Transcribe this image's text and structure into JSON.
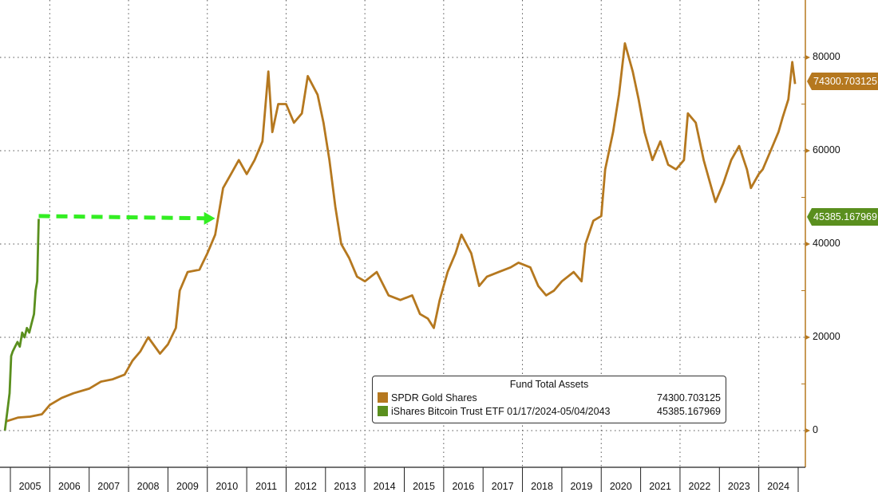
{
  "chart_data": {
    "type": "line",
    "title": "",
    "xlabel": "",
    "ylabel": "",
    "ylim": [
      -8000,
      92000
    ],
    "xlim": [
      2004.98,
      2025.3
    ],
    "grid": true,
    "legend_placement": "bottom-right",
    "y_ticks": [
      "0",
      "20000",
      "40000",
      "60000",
      "80000"
    ],
    "y_tick_values": [
      0,
      20000,
      40000,
      60000,
      80000
    ],
    "x_tick_labels": [
      "2005",
      "2006",
      "2007",
      "2008",
      "2009",
      "2010",
      "2011",
      "2012",
      "2013",
      "2014",
      "2015",
      "2016",
      "2017",
      "2018",
      "2019",
      "2020",
      "2021",
      "2022",
      "2023",
      "2024"
    ],
    "legend_title": "Fund Total Assets",
    "series": [
      {
        "name": "SPDR Gold Shares",
        "last_value": "74300.703125",
        "color": "#b5781f",
        "x": [
          2004.9,
          2005.2,
          2005.5,
          2005.8,
          2006.0,
          2006.3,
          2006.6,
          2007.0,
          2007.3,
          2007.6,
          2007.9,
          2008.1,
          2008.3,
          2008.5,
          2008.8,
          2009.0,
          2009.2,
          2009.3,
          2009.5,
          2009.8,
          2010.0,
          2010.2,
          2010.4,
          2010.6,
          2010.8,
          2011.0,
          2011.2,
          2011.4,
          2011.55,
          2011.65,
          2011.8,
          2012.0,
          2012.2,
          2012.4,
          2012.55,
          2012.8,
          2012.95,
          2013.1,
          2013.25,
          2013.4,
          2013.6,
          2013.8,
          2014.0,
          2014.3,
          2014.6,
          2014.9,
          2015.2,
          2015.4,
          2015.6,
          2015.75,
          2015.9,
          2016.1,
          2016.3,
          2016.45,
          2016.7,
          2016.9,
          2017.1,
          2017.4,
          2017.7,
          2017.9,
          2018.2,
          2018.4,
          2018.6,
          2018.8,
          2019.0,
          2019.3,
          2019.5,
          2019.6,
          2019.8,
          2020.0,
          2020.1,
          2020.3,
          2020.45,
          2020.6,
          2020.8,
          2020.95,
          2021.1,
          2021.3,
          2021.5,
          2021.7,
          2021.9,
          2022.1,
          2022.2,
          2022.4,
          2022.6,
          2022.8,
          2022.9,
          2023.1,
          2023.3,
          2023.5,
          2023.7,
          2023.8,
          2024.0,
          2024.1,
          2024.3,
          2024.5,
          2024.6,
          2024.75,
          2024.85,
          2024.92
        ],
        "y": [
          2000,
          2800,
          3000,
          3500,
          5500,
          7000,
          8000,
          9000,
          10500,
          11000,
          12000,
          15000,
          17000,
          20000,
          16500,
          18500,
          22000,
          30000,
          34000,
          34500,
          38000,
          42000,
          52000,
          55000,
          58000,
          55000,
          58000,
          62000,
          77000,
          64000,
          70000,
          70000,
          66000,
          68000,
          76000,
          72000,
          66000,
          58000,
          48000,
          40000,
          37000,
          33000,
          32000,
          34000,
          29000,
          28000,
          29000,
          25000,
          24000,
          22000,
          28000,
          34000,
          38000,
          42000,
          38000,
          31000,
          33000,
          34000,
          35000,
          36000,
          35000,
          31000,
          29000,
          30000,
          32000,
          34000,
          32000,
          40000,
          45000,
          46000,
          56000,
          64000,
          72000,
          83000,
          77000,
          71000,
          64000,
          58000,
          62000,
          57000,
          56000,
          58000,
          68000,
          66000,
          58000,
          52000,
          49000,
          53000,
          58000,
          61000,
          56000,
          52000,
          55000,
          56000,
          60000,
          64000,
          67000,
          71000,
          79000,
          74300
        ]
      },
      {
        "name": "iShares Bitcoin Trust ETF 01/17/2024-05/04/2043",
        "last_value": "45385.167969",
        "color": "#5a8f1e",
        "x": [
          2004.86,
          2004.92,
          2004.98,
          2005.02,
          2005.06,
          2005.12,
          2005.18,
          2005.24,
          2005.3,
          2005.36,
          2005.42,
          2005.48,
          2005.54,
          2005.6,
          2005.64,
          2005.68,
          2005.72
        ],
        "y": [
          0,
          4000,
          8000,
          16000,
          17000,
          18000,
          19000,
          18000,
          21000,
          20000,
          22000,
          21000,
          23000,
          25000,
          30000,
          32000,
          45385
        ]
      }
    ],
    "annotations": [
      {
        "type": "dashed-arrow",
        "color": "#33ee22",
        "from": [
          2005.72,
          46000
        ],
        "to": [
          2010.2,
          45500
        ]
      }
    ]
  }
}
